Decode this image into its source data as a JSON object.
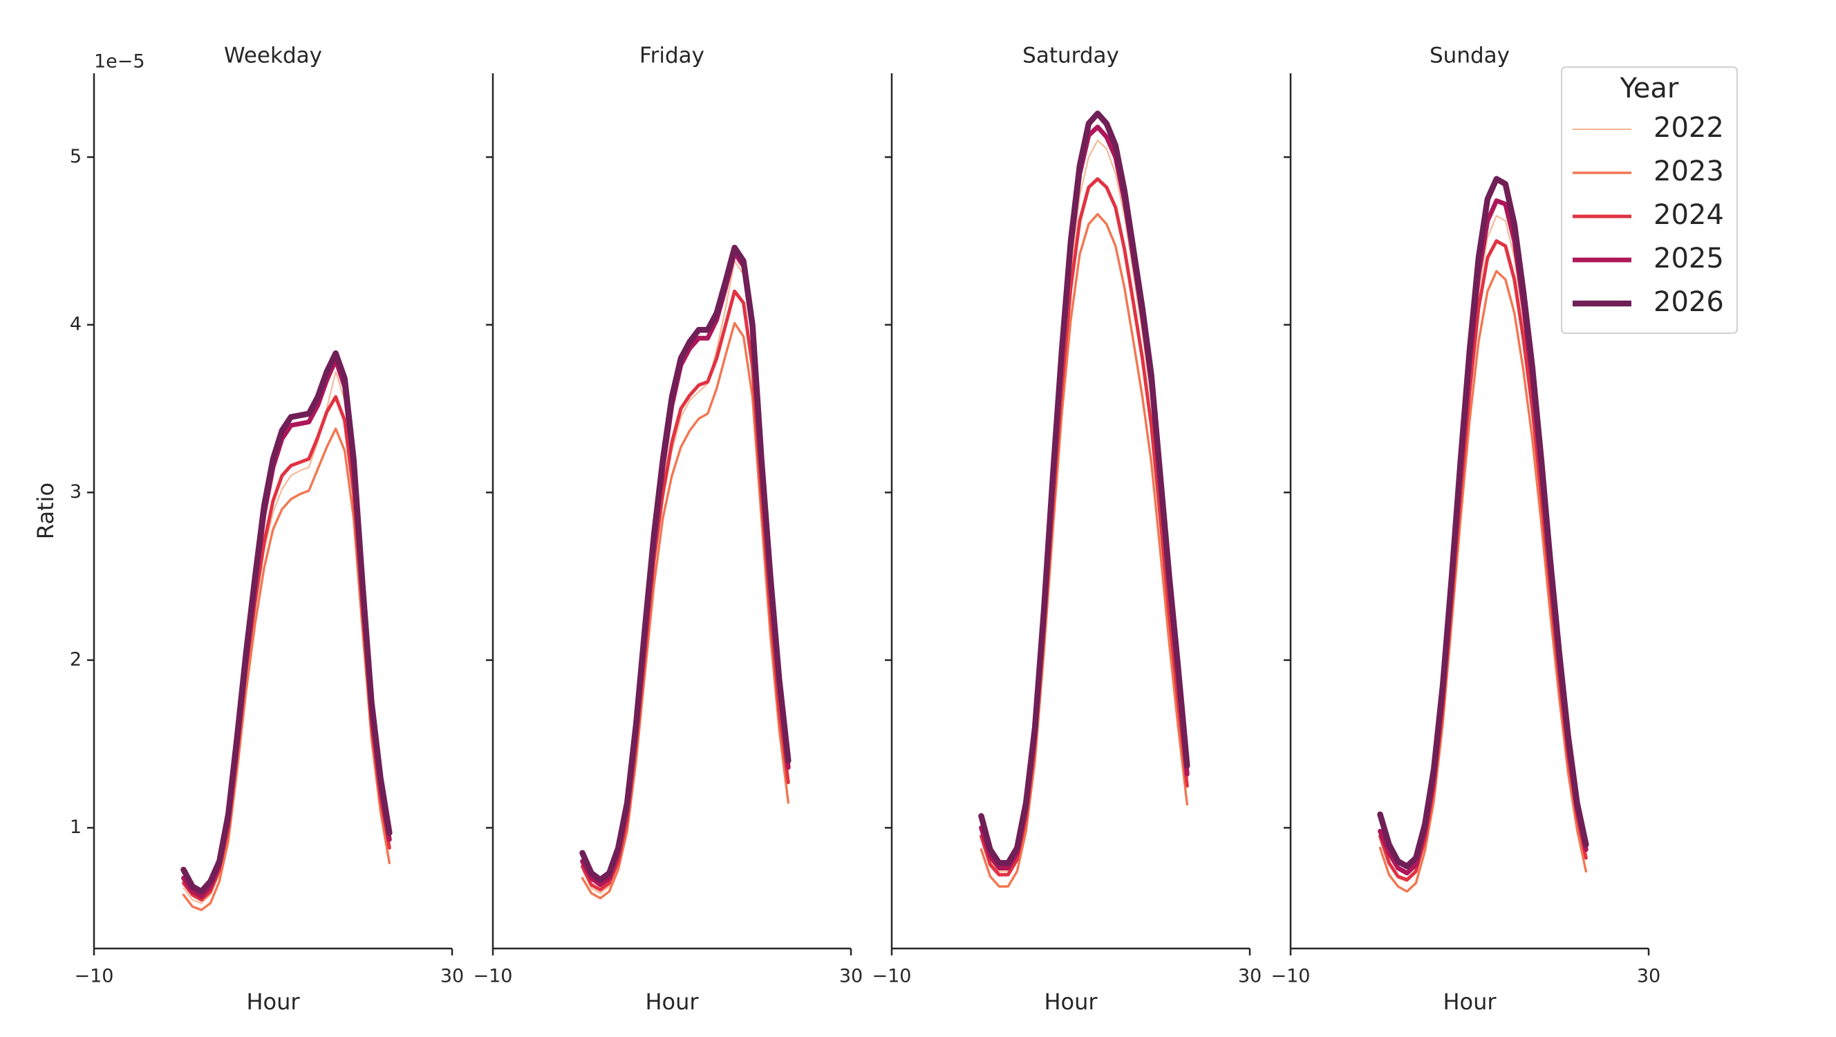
{
  "chart_data": [
    {
      "type": "line",
      "title": "Weekday",
      "xlabel": "Hour",
      "ylabel": "Ratio",
      "offset_text": "1e−5",
      "legend_title": "Year",
      "legend": "upper right",
      "x": [
        0,
        1,
        2,
        3,
        4,
        5,
        6,
        7,
        8,
        9,
        10,
        11,
        12,
        13,
        14,
        15,
        16,
        17,
        18,
        19,
        20,
        21,
        22,
        23
      ],
      "xlim": [
        -10,
        30
      ],
      "xticks": [
        {
          "value": -10,
          "label": "−10"
        },
        30
      ],
      "ylim": [
        0.28,
        5.5
      ],
      "yticks": [
        1,
        2,
        3,
        4,
        5
      ],
      "series": [
        {
          "name": "2022",
          "color": "#f6b48f",
          "values": [
            0.64,
            0.57,
            0.55,
            0.6,
            0.72,
            0.97,
            1.42,
            1.9,
            2.3,
            2.65,
            2.88,
            3.02,
            3.1,
            3.13,
            3.15,
            3.3,
            3.5,
            3.72,
            3.55,
            3.1,
            2.38,
            1.67,
            1.2,
            0.9
          ]
        },
        {
          "name": "2023",
          "color": "#f37651",
          "values": [
            0.6,
            0.53,
            0.51,
            0.55,
            0.68,
            0.92,
            1.35,
            1.82,
            2.22,
            2.55,
            2.78,
            2.9,
            2.96,
            2.99,
            3.01,
            3.14,
            3.27,
            3.38,
            3.25,
            2.85,
            2.18,
            1.53,
            1.1,
            0.79
          ]
        },
        {
          "name": "2024",
          "color": "#e13342",
          "values": [
            0.67,
            0.6,
            0.57,
            0.62,
            0.75,
            1.0,
            1.45,
            1.95,
            2.35,
            2.7,
            2.95,
            3.1,
            3.16,
            3.18,
            3.2,
            3.33,
            3.48,
            3.57,
            3.43,
            3.0,
            2.3,
            1.62,
            1.18,
            0.88
          ]
        },
        {
          "name": "2025",
          "color": "#ad1759",
          "values": [
            0.7,
            0.62,
            0.59,
            0.65,
            0.78,
            1.05,
            1.5,
            2.0,
            2.45,
            2.87,
            3.15,
            3.32,
            3.4,
            3.41,
            3.42,
            3.52,
            3.67,
            3.79,
            3.63,
            3.15,
            2.4,
            1.7,
            1.25,
            0.93
          ]
        },
        {
          "name": "2026",
          "color": "#701f57",
          "values": [
            0.75,
            0.65,
            0.62,
            0.68,
            0.8,
            1.08,
            1.55,
            2.05,
            2.5,
            2.92,
            3.2,
            3.37,
            3.45,
            3.46,
            3.47,
            3.57,
            3.72,
            3.83,
            3.68,
            3.2,
            2.45,
            1.75,
            1.3,
            0.97
          ]
        }
      ]
    },
    {
      "type": "line",
      "title": "Friday",
      "xlabel": "Hour",
      "x": [
        0,
        1,
        2,
        3,
        4,
        5,
        6,
        7,
        8,
        9,
        10,
        11,
        12,
        13,
        14,
        15,
        16,
        17,
        18,
        19,
        20,
        21,
        22,
        23
      ],
      "xlim": [
        -10,
        30
      ],
      "xticks": [
        {
          "value": -10,
          "label": "−10"
        },
        30
      ],
      "ylim": [
        0.28,
        5.5
      ],
      "yticks": [
        1,
        2,
        3,
        4,
        5
      ],
      "series": [
        {
          "color": "#f6b48f",
          "values": [
            0.75,
            0.64,
            0.61,
            0.65,
            0.78,
            1.02,
            1.47,
            2.0,
            2.55,
            2.95,
            3.25,
            3.45,
            3.55,
            3.6,
            3.65,
            3.85,
            4.1,
            4.38,
            4.3,
            3.9,
            3.1,
            2.4,
            1.8,
            1.35
          ]
        },
        {
          "color": "#f37651",
          "values": [
            0.7,
            0.61,
            0.58,
            0.62,
            0.75,
            0.98,
            1.4,
            1.93,
            2.45,
            2.85,
            3.1,
            3.27,
            3.37,
            3.44,
            3.47,
            3.62,
            3.82,
            4.01,
            3.93,
            3.57,
            2.85,
            2.15,
            1.58,
            1.15
          ]
        },
        {
          "color": "#e13342",
          "values": [
            0.77,
            0.66,
            0.63,
            0.67,
            0.8,
            1.05,
            1.5,
            2.05,
            2.6,
            3.0,
            3.3,
            3.5,
            3.58,
            3.64,
            3.66,
            3.8,
            4.0,
            4.2,
            4.13,
            3.75,
            3.0,
            2.3,
            1.7,
            1.27
          ]
        },
        {
          "color": "#ad1759",
          "values": [
            0.8,
            0.7,
            0.66,
            0.7,
            0.85,
            1.12,
            1.58,
            2.15,
            2.7,
            3.15,
            3.52,
            3.76,
            3.86,
            3.92,
            3.92,
            4.03,
            4.22,
            4.43,
            4.35,
            3.97,
            3.17,
            2.47,
            1.85,
            1.36
          ]
        },
        {
          "color": "#701f57",
          "values": [
            0.85,
            0.73,
            0.69,
            0.73,
            0.88,
            1.15,
            1.62,
            2.2,
            2.75,
            3.2,
            3.57,
            3.8,
            3.9,
            3.97,
            3.97,
            4.07,
            4.26,
            4.46,
            4.38,
            4.0,
            3.2,
            2.5,
            1.88,
            1.4
          ]
        }
      ]
    },
    {
      "type": "line",
      "title": "Saturday",
      "xlabel": "Hour",
      "x": [
        0,
        1,
        2,
        3,
        4,
        5,
        6,
        7,
        8,
        9,
        10,
        11,
        12,
        13,
        14,
        15,
        16,
        17,
        18,
        19,
        20,
        21,
        22,
        23
      ],
      "xlim": [
        -10,
        30
      ],
      "xticks": [
        {
          "value": -10,
          "label": "−10"
        },
        30
      ],
      "ylim": [
        0.28,
        5.5
      ],
      "yticks": [
        1,
        2,
        3,
        4,
        5
      ],
      "series": [
        {
          "color": "#f6b48f",
          "values": [
            0.97,
            0.8,
            0.74,
            0.74,
            0.83,
            1.08,
            1.53,
            2.22,
            3.0,
            3.73,
            4.33,
            4.77,
            5.0,
            5.1,
            5.05,
            4.9,
            4.65,
            4.3,
            3.95,
            3.55,
            2.98,
            2.38,
            1.85,
            1.3
          ]
        },
        {
          "color": "#f37651",
          "values": [
            0.87,
            0.71,
            0.65,
            0.65,
            0.74,
            0.98,
            1.4,
            2.05,
            2.78,
            3.47,
            4.03,
            4.42,
            4.6,
            4.66,
            4.6,
            4.47,
            4.22,
            3.9,
            3.57,
            3.18,
            2.65,
            2.1,
            1.6,
            1.14
          ]
        },
        {
          "color": "#e13342",
          "values": [
            0.95,
            0.78,
            0.72,
            0.72,
            0.81,
            1.06,
            1.5,
            2.17,
            2.93,
            3.63,
            4.22,
            4.62,
            4.82,
            4.87,
            4.82,
            4.7,
            4.45,
            4.13,
            3.8,
            3.4,
            2.85,
            2.27,
            1.75,
            1.25
          ]
        },
        {
          "color": "#ad1759",
          "values": [
            1.0,
            0.83,
            0.76,
            0.76,
            0.85,
            1.12,
            1.57,
            2.27,
            3.07,
            3.82,
            4.45,
            4.9,
            5.13,
            5.18,
            5.12,
            5.0,
            4.74,
            4.4,
            4.05,
            3.65,
            3.05,
            2.45,
            1.9,
            1.32
          ]
        },
        {
          "color": "#701f57",
          "values": [
            1.07,
            0.87,
            0.79,
            0.79,
            0.88,
            1.15,
            1.6,
            2.3,
            3.1,
            3.85,
            4.5,
            4.95,
            5.2,
            5.26,
            5.2,
            5.07,
            4.8,
            4.45,
            4.1,
            3.7,
            3.1,
            2.5,
            1.95,
            1.37
          ]
        }
      ]
    },
    {
      "type": "line",
      "title": "Sunday",
      "xlabel": "Hour",
      "x": [
        0,
        1,
        2,
        3,
        4,
        5,
        6,
        7,
        8,
        9,
        10,
        11,
        12,
        13,
        14,
        15,
        16,
        17,
        18,
        19,
        20,
        21,
        22,
        23
      ],
      "xlim": [
        -10,
        30
      ],
      "xticks": [
        {
          "value": -10,
          "label": "−10"
        },
        30
      ],
      "ylim": [
        0.28,
        5.5
      ],
      "yticks": [
        1,
        2,
        3,
        4,
        5
      ],
      "series": [
        {
          "color": "#f6b48f",
          "values": [
            0.93,
            0.78,
            0.7,
            0.68,
            0.73,
            0.92,
            1.23,
            1.72,
            2.38,
            3.05,
            3.68,
            4.2,
            4.52,
            4.65,
            4.62,
            4.4,
            4.03,
            3.58,
            3.05,
            2.48,
            1.95,
            1.46,
            1.09,
            0.85
          ]
        },
        {
          "color": "#f37651",
          "values": [
            0.88,
            0.72,
            0.65,
            0.62,
            0.67,
            0.86,
            1.16,
            1.62,
            2.23,
            2.85,
            3.43,
            3.9,
            4.2,
            4.32,
            4.27,
            4.07,
            3.73,
            3.32,
            2.82,
            2.28,
            1.78,
            1.33,
            0.99,
            0.74
          ]
        },
        {
          "color": "#e13342",
          "values": [
            0.95,
            0.79,
            0.71,
            0.69,
            0.74,
            0.93,
            1.24,
            1.72,
            2.35,
            3.0,
            3.6,
            4.1,
            4.4,
            4.5,
            4.47,
            4.27,
            3.92,
            3.5,
            2.98,
            2.43,
            1.9,
            1.43,
            1.07,
            0.82
          ]
        },
        {
          "color": "#ad1759",
          "values": [
            0.98,
            0.85,
            0.76,
            0.73,
            0.78,
            0.98,
            1.3,
            1.8,
            2.45,
            3.13,
            3.77,
            4.3,
            4.62,
            4.74,
            4.72,
            4.5,
            4.12,
            3.68,
            3.13,
            2.55,
            2.0,
            1.5,
            1.12,
            0.87
          ]
        },
        {
          "color": "#701f57",
          "values": [
            1.08,
            0.9,
            0.8,
            0.77,
            0.82,
            1.02,
            1.35,
            1.85,
            2.5,
            3.2,
            3.85,
            4.4,
            4.75,
            4.87,
            4.84,
            4.6,
            4.2,
            3.75,
            3.2,
            2.6,
            2.05,
            1.55,
            1.15,
            0.9
          ]
        }
      ]
    }
  ]
}
